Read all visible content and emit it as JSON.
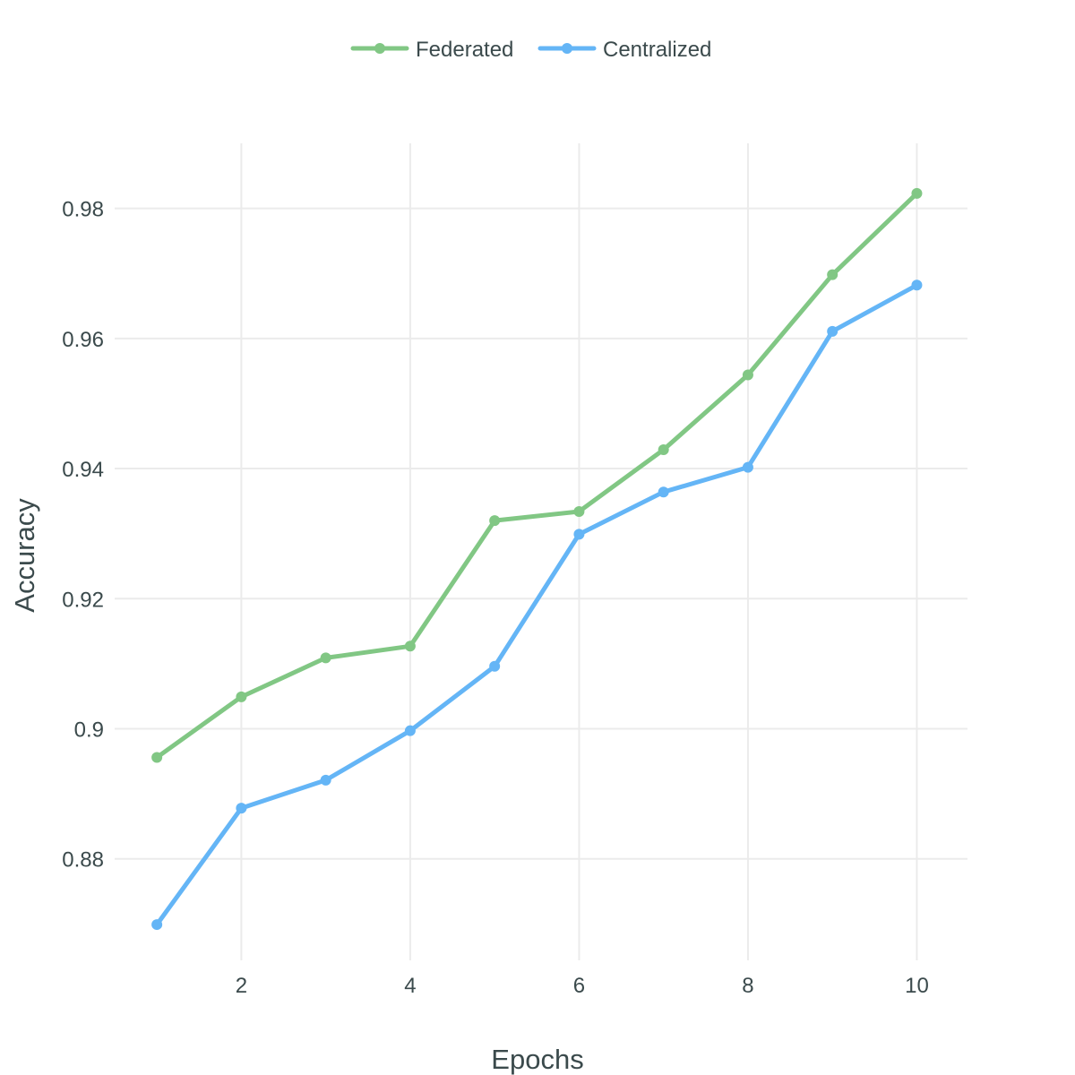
{
  "chart_data": {
    "type": "line",
    "x": [
      1,
      2,
      3,
      4,
      5,
      6,
      7,
      8,
      9,
      10
    ],
    "series": [
      {
        "name": "Federated",
        "color": "#81c784",
        "values": [
          0.8956,
          0.9049,
          0.9109,
          0.9127,
          0.932,
          0.9334,
          0.9429,
          0.9544,
          0.9698,
          0.9823
        ]
      },
      {
        "name": "Centralized",
        "color": "#64b5f6",
        "values": [
          0.8699,
          0.8878,
          0.8921,
          0.8997,
          0.9096,
          0.9299,
          0.9364,
          0.9402,
          0.9611,
          0.9682
        ]
      }
    ],
    "xlabel": "Epochs",
    "ylabel": "Accuracy",
    "xlim": [
      0.5,
      10.6
    ],
    "ylim": [
      0.8644,
      0.99
    ],
    "xticks": [
      2,
      4,
      6,
      8,
      10
    ],
    "xtick_labels": [
      "2",
      "4",
      "6",
      "8",
      "10"
    ],
    "yticks": [
      0.88,
      0.9,
      0.92,
      0.94,
      0.96,
      0.98
    ],
    "ytick_labels": [
      "0.88",
      "0.9",
      "0.92",
      "0.94",
      "0.96",
      "0.98"
    ],
    "grid": true,
    "legend_position": "top-center"
  }
}
